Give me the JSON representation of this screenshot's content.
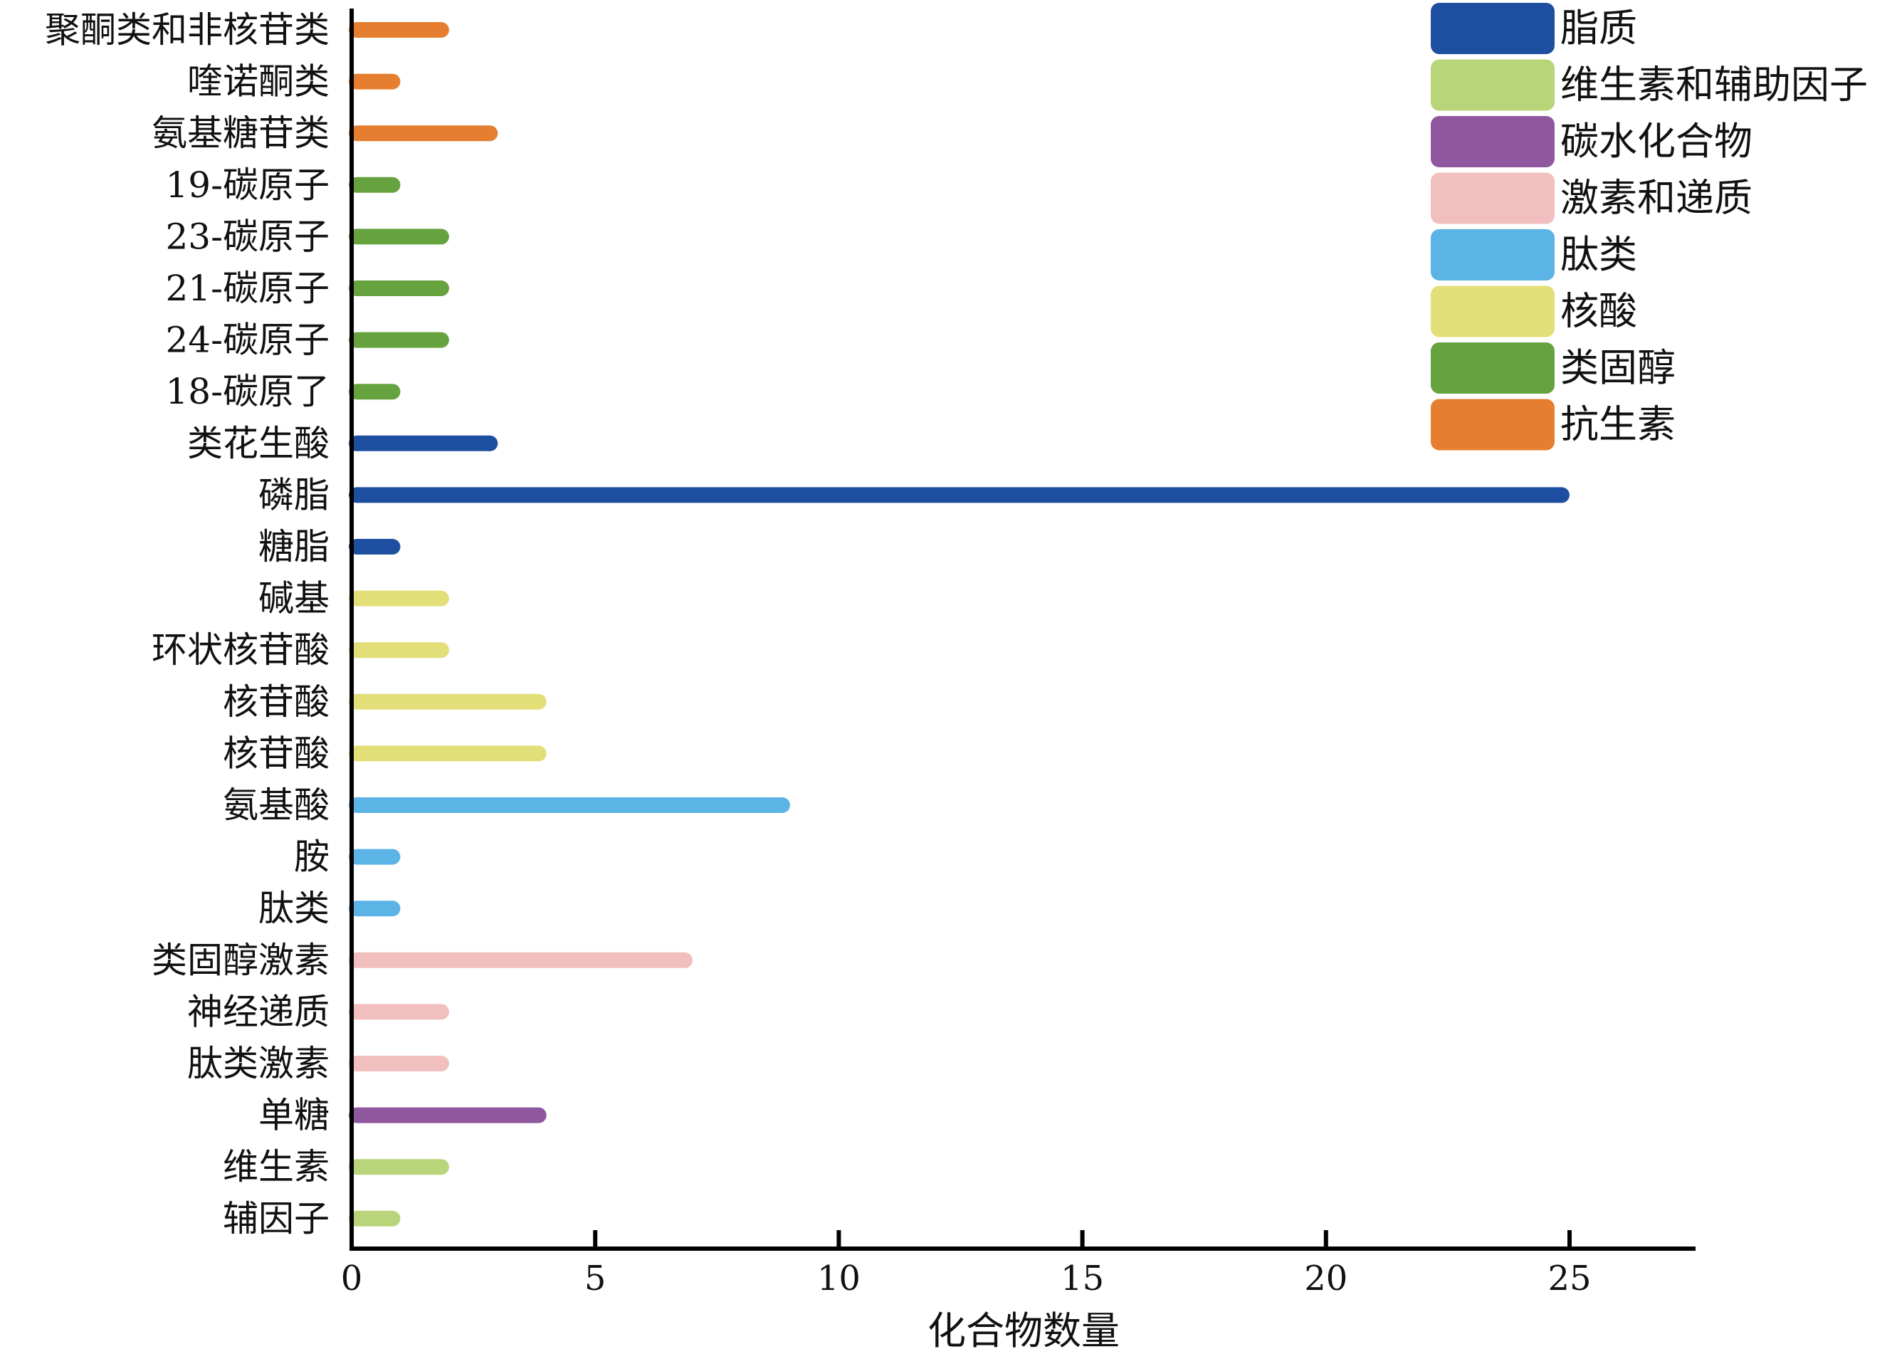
{
  "chart_data": {
    "type": "bar",
    "orientation": "horizontal",
    "xlabel": "化合物数量",
    "ylabel": "",
    "xlim": [
      0,
      27.5
    ],
    "xticks": [
      0,
      5,
      10,
      15,
      20,
      25
    ],
    "grid": false,
    "legend_position": "top-right",
    "groups": [
      {
        "name": "脂质",
        "color": "#1e4ea0"
      },
      {
        "name": "维生素和辅助因子",
        "color": "#b8d57a"
      },
      {
        "name": "碳水化合物",
        "color": "#8f579e"
      },
      {
        "name": "激素和递质",
        "color": "#f2bfbf"
      },
      {
        "name": "肽类",
        "color": "#5cb3e6"
      },
      {
        "name": "核酸",
        "color": "#e3df78"
      },
      {
        "name": "类固醇",
        "color": "#66a23e"
      },
      {
        "name": "抗生素",
        "color": "#e57f2f"
      }
    ],
    "bars": [
      {
        "category": "聚酮类和非核苷类",
        "value": 2,
        "group": "抗生素"
      },
      {
        "category": "喹诺酮类",
        "value": 1,
        "group": "抗生素"
      },
      {
        "category": "氨基糖苷类",
        "value": 3,
        "group": "抗生素"
      },
      {
        "category": "19-碳原子",
        "value": 1,
        "group": "类固醇"
      },
      {
        "category": "23-碳原子",
        "value": 2,
        "group": "类固醇"
      },
      {
        "category": "21-碳原子",
        "value": 2,
        "group": "类固醇"
      },
      {
        "category": "24-碳原子",
        "value": 2,
        "group": "类固醇"
      },
      {
        "category": "18-碳原了",
        "value": 1,
        "group": "类固醇"
      },
      {
        "category": "类花生酸",
        "value": 3,
        "group": "脂质"
      },
      {
        "category": "磷脂",
        "value": 25,
        "group": "脂质"
      },
      {
        "category": "糖脂",
        "value": 1,
        "group": "脂质"
      },
      {
        "category": "碱基",
        "value": 2,
        "group": "核酸"
      },
      {
        "category": "环状核苷酸",
        "value": 2,
        "group": "核酸"
      },
      {
        "category": "核苷酸",
        "value": 4,
        "group": "核酸"
      },
      {
        "category": "核苷酸",
        "value": 4,
        "group": "核酸"
      },
      {
        "category": "氨基酸",
        "value": 9,
        "group": "肽类"
      },
      {
        "category": "胺",
        "value": 1,
        "group": "肽类"
      },
      {
        "category": "肽类",
        "value": 1,
        "group": "肽类"
      },
      {
        "category": "类固醇激素",
        "value": 7,
        "group": "激素和递质"
      },
      {
        "category": "神经递质",
        "value": 2,
        "group": "激素和递质"
      },
      {
        "category": "肽类激素",
        "value": 2,
        "group": "激素和递质"
      },
      {
        "category": "单糖",
        "value": 4,
        "group": "碳水化合物"
      },
      {
        "category": "维生素",
        "value": 2,
        "group": "维生素和辅助因子"
      },
      {
        "category": "辅因子",
        "value": 1,
        "group": "维生素和辅助因子"
      }
    ]
  }
}
